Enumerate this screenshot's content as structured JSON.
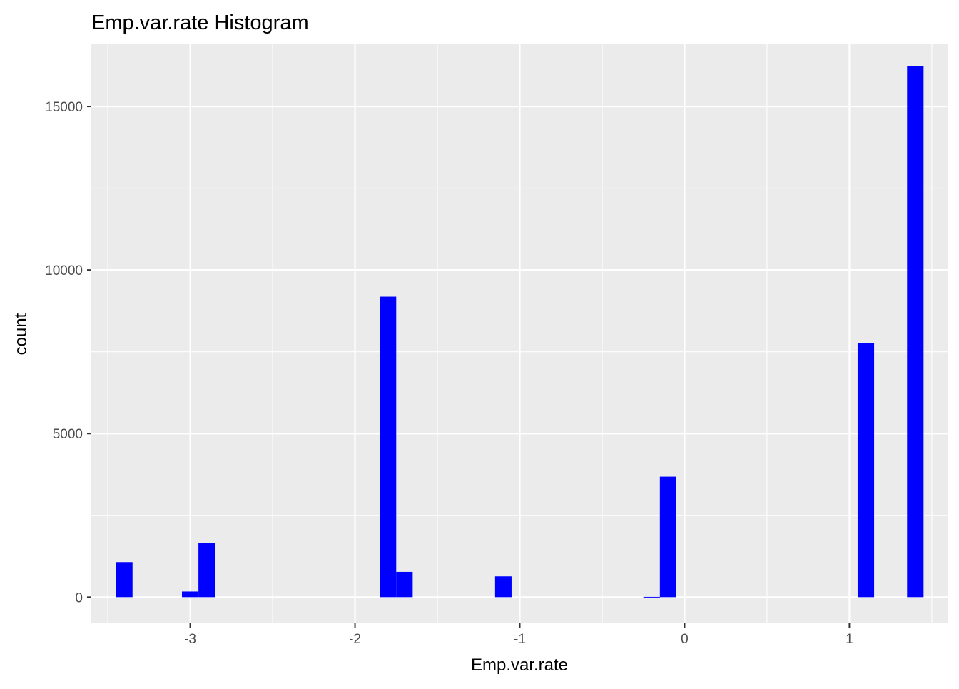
{
  "chart_data": {
    "type": "bar",
    "title": "Emp.var.rate Histogram",
    "xlabel": "Emp.var.rate",
    "ylabel": "count",
    "xlim": [
      -3.6,
      1.6
    ],
    "ylim": [
      -800,
      16900
    ],
    "x_ticks": [
      -3,
      -2,
      -1,
      0,
      1
    ],
    "x_tick_labels": [
      "-3",
      "-2",
      "-1",
      "0",
      "1"
    ],
    "y_ticks": [
      0,
      5000,
      10000,
      15000
    ],
    "y_tick_labels": [
      "0",
      "5000",
      "10000",
      "15000"
    ],
    "grid": true,
    "bin_width": 0.1,
    "fill_color": "#0000ff",
    "panel_color": "#ebebeb",
    "grid_color": "#ffffff",
    "bins": [
      {
        "x": -3.4,
        "count": 1071
      },
      {
        "x": -3.0,
        "count": 172
      },
      {
        "x": -2.9,
        "count": 1663
      },
      {
        "x": -1.8,
        "count": 9184
      },
      {
        "x": -1.7,
        "count": 773
      },
      {
        "x": -1.1,
        "count": 635
      },
      {
        "x": -0.2,
        "count": 10
      },
      {
        "x": -0.1,
        "count": 3683
      },
      {
        "x": 1.1,
        "count": 7763
      },
      {
        "x": 1.4,
        "count": 16234
      }
    ]
  }
}
